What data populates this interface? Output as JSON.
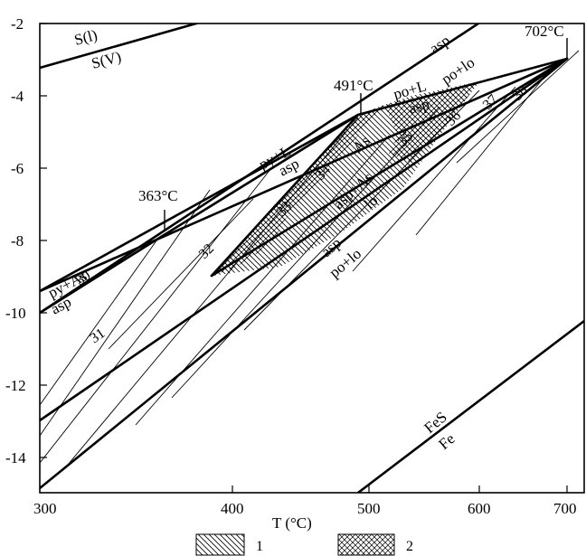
{
  "diagram": {
    "x_axis": {
      "title": "T (°C)",
      "range": [
        300,
        700
      ],
      "tick_labels": [
        "300",
        "400",
        "500",
        "600",
        "700"
      ]
    },
    "y_axis": {
      "range": [
        -15,
        -2
      ],
      "tick_labels": [
        "-2",
        "-4",
        "-6",
        "-8",
        "-10",
        "-12",
        "-14"
      ]
    },
    "temperature_labels": [
      "363°C",
      "491°C",
      "702°C"
    ],
    "field_labels": [
      "S(l)",
      "S(V)",
      "asp",
      "po+lo",
      "po+L",
      "asp",
      "py+L",
      "asp",
      "As",
      "asp+As",
      "lo",
      "asp",
      "po+lo",
      "py+As",
      "asp",
      "FeS",
      "Fe"
    ],
    "isopleth_labels": [
      "30",
      "31",
      "32",
      "33",
      "34",
      "35",
      "36",
      "37",
      "38"
    ],
    "legend": [
      {
        "label": "1",
        "pattern": "diagonal-hatch"
      },
      {
        "label": "2",
        "pattern": "cross-hatch"
      }
    ]
  }
}
